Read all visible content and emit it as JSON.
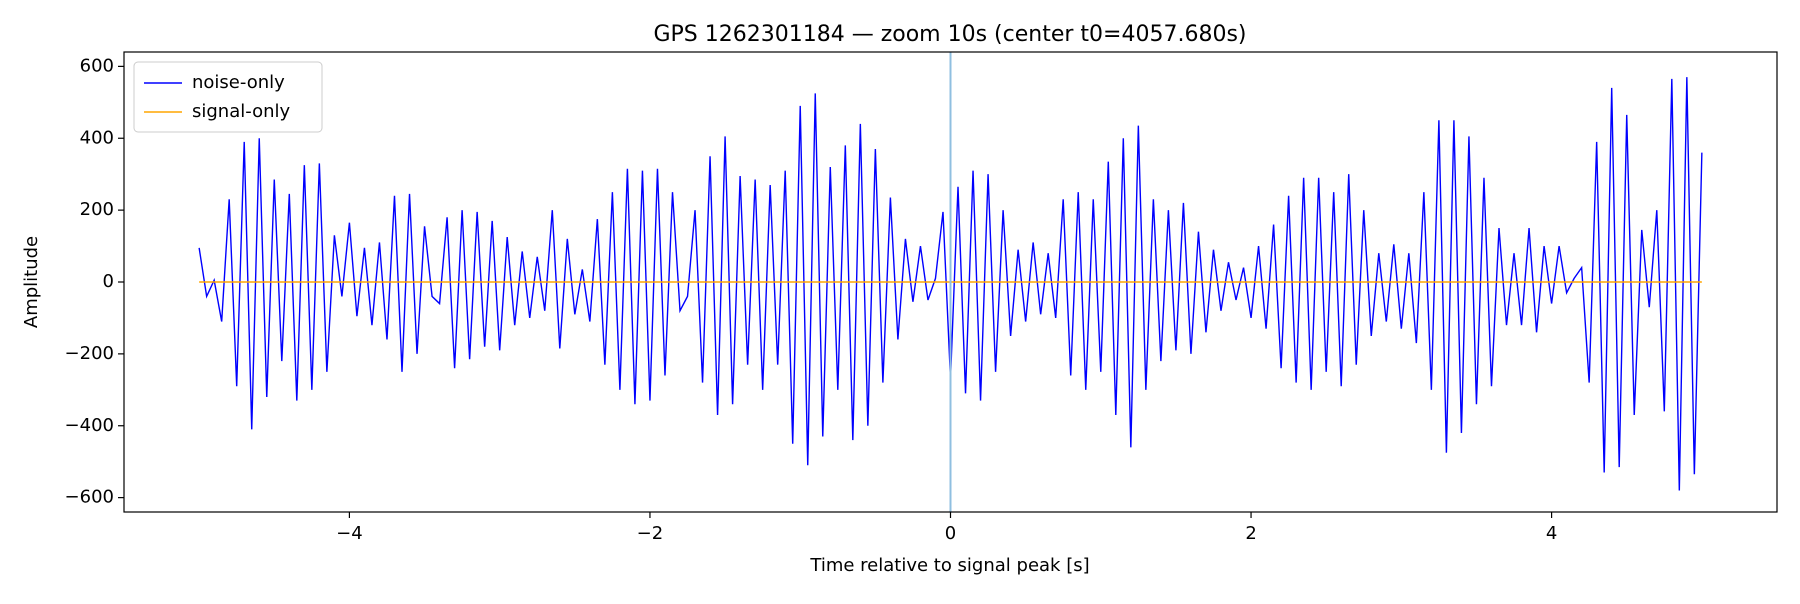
{
  "chart_data": {
    "type": "line",
    "title": "GPS 1262301184 — zoom 10s (center t0=4057.680s)",
    "xlabel": "Time relative to signal peak [s]",
    "ylabel": "Amplitude",
    "x": [
      -5,
      -4.95,
      -4.9,
      -4.85,
      -4.8,
      -4.75,
      -4.7,
      -4.65,
      -4.6,
      -4.55,
      -4.5,
      -4.45,
      -4.4,
      -4.35,
      -4.3,
      -4.25,
      -4.2,
      -4.15,
      -4.1,
      -4.05,
      -4,
      -3.95,
      -3.9,
      -3.85,
      -3.8,
      -3.75,
      -3.7,
      -3.65,
      -3.6,
      -3.55,
      -3.5,
      -3.45,
      -3.4,
      -3.35,
      -3.3,
      -3.25,
      -3.2,
      -3.15,
      -3.1,
      -3.05,
      -3,
      -2.95,
      -2.9,
      -2.85,
      -2.8,
      -2.75,
      -2.7,
      -2.65,
      -2.6,
      -2.55,
      -2.5,
      -2.45,
      -2.4,
      -2.35,
      -2.3,
      -2.25,
      -2.2,
      -2.15,
      -2.1,
      -2.05,
      -2,
      -1.95,
      -1.9,
      -1.85,
      -1.8,
      -1.75,
      -1.7,
      -1.65,
      -1.6,
      -1.55,
      -1.5,
      -1.45,
      -1.4,
      -1.35,
      -1.3,
      -1.25,
      -1.2,
      -1.15,
      -1.1,
      -1.05,
      -1,
      -0.95,
      -0.9,
      -0.85,
      -0.8,
      -0.75,
      -0.7,
      -0.65,
      -0.6,
      -0.55,
      -0.5,
      -0.45,
      -0.4,
      -0.35,
      -0.3,
      -0.25,
      -0.2,
      -0.15,
      -0.1,
      -0.05,
      0,
      0.05,
      0.1,
      0.15,
      0.2,
      0.25,
      0.3,
      0.35,
      0.4,
      0.45,
      0.5,
      0.55,
      0.6,
      0.65,
      0.7,
      0.75,
      0.8,
      0.85,
      0.9,
      0.95,
      1,
      1.05,
      1.1,
      1.15,
      1.2,
      1.25,
      1.3,
      1.35,
      1.4,
      1.45,
      1.5,
      1.55,
      1.6,
      1.65,
      1.7,
      1.75,
      1.8,
      1.85,
      1.9,
      1.95,
      2,
      2.05,
      2.1,
      2.15,
      2.2,
      2.25,
      2.3,
      2.35,
      2.4,
      2.45,
      2.5,
      2.55,
      2.6,
      2.65,
      2.7,
      2.75,
      2.8,
      2.85,
      2.9,
      2.95,
      3,
      3.05,
      3.1,
      3.15,
      3.2,
      3.25,
      3.3,
      3.35,
      3.4,
      3.45,
      3.5,
      3.55,
      3.6,
      3.65,
      3.7,
      3.75,
      3.8,
      3.85,
      3.9,
      3.95,
      4,
      4.05,
      4.1,
      4.15,
      4.2,
      4.25,
      4.3,
      4.35,
      4.4,
      4.45,
      4.5,
      4.55,
      4.6,
      4.65,
      4.7,
      4.75,
      4.8,
      4.85,
      4.9,
      4.95,
      5
    ],
    "series": [
      {
        "name": "noise-only",
        "color": "#0000ff",
        "values": [
          95,
          -40,
          5,
          -110,
          230,
          -290,
          390,
          -410,
          400,
          -320,
          285,
          -220,
          245,
          -330,
          325,
          -300,
          330,
          -250,
          130,
          -40,
          165,
          -95,
          95,
          -120,
          110,
          -160,
          240,
          -250,
          245,
          -200,
          155,
          -40,
          -60,
          180,
          -240,
          200,
          -215,
          195,
          -180,
          170,
          -190,
          125,
          -120,
          85,
          -100,
          70,
          -80,
          200,
          -185,
          120,
          -90,
          35,
          -110,
          175,
          -230,
          250,
          -300,
          315,
          -340,
          310,
          -330,
          315,
          -260,
          250,
          -80,
          -40,
          200,
          -280,
          350,
          -370,
          405,
          -340,
          295,
          -230,
          285,
          -300,
          270,
          -230,
          310,
          -450,
          490,
          -510,
          525,
          -430,
          320,
          -300,
          380,
          -440,
          440,
          -400,
          370,
          -280,
          235,
          -160,
          120,
          -55,
          100,
          -50,
          10,
          195,
          -270,
          265,
          -310,
          310,
          -330,
          300,
          -250,
          200,
          -150,
          90,
          -110,
          110,
          -90,
          80,
          -100,
          230,
          -260,
          250,
          -300,
          230,
          -250,
          335,
          -370,
          400,
          -460,
          435,
          -300,
          230,
          -220,
          200,
          -190,
          220,
          -200,
          140,
          -140,
          90,
          -80,
          55,
          -50,
          40,
          -100,
          100,
          -130,
          160,
          -240,
          240,
          -280,
          290,
          -300,
          290,
          -250,
          250,
          -290,
          300,
          -230,
          200,
          -150,
          80,
          -110,
          105,
          -130,
          80,
          -170,
          250,
          -300,
          450,
          -475,
          450,
          -420,
          405,
          -340,
          290,
          -290,
          150,
          -120,
          80,
          -120,
          150,
          -140,
          100,
          -60,
          100,
          -30,
          10,
          40,
          -280,
          390,
          -530,
          540,
          -515,
          465,
          -370,
          145,
          -70,
          200,
          -360,
          565,
          -580,
          570,
          -535,
          360
        ]
      },
      {
        "name": "signal-only",
        "color": "#ffa500",
        "values": [
          0,
          0,
          0,
          0,
          0,
          0,
          0,
          0,
          0,
          0,
          0,
          0,
          0,
          0,
          0,
          0,
          0,
          0,
          0,
          0,
          0,
          0,
          0,
          0,
          0,
          0,
          0,
          0,
          0,
          0,
          0,
          0,
          0,
          0,
          0,
          0,
          0,
          0,
          0,
          0,
          0,
          0,
          0,
          0,
          0,
          0,
          0,
          0,
          0,
          0,
          0,
          0,
          0,
          0,
          0,
          0,
          0,
          0,
          0,
          0,
          0,
          0,
          0,
          0,
          0,
          0,
          0,
          0,
          0,
          0,
          0,
          0,
          0,
          0,
          0,
          0,
          0,
          0,
          0,
          0,
          0,
          0,
          0,
          0,
          0,
          0,
          0,
          0,
          0,
          0,
          0,
          0,
          0,
          0,
          0,
          0,
          0,
          0,
          0,
          0,
          0,
          0,
          0,
          0,
          0,
          0,
          0,
          0,
          0,
          0,
          0,
          0,
          0,
          0,
          0,
          0,
          0,
          0,
          0,
          0,
          0,
          0,
          0,
          0,
          0,
          0,
          0,
          0,
          0,
          0,
          0,
          0,
          0,
          0,
          0,
          0,
          0,
          0,
          0,
          0,
          0,
          0,
          0,
          0,
          0,
          0,
          0,
          0,
          0,
          0,
          0,
          0,
          0,
          0,
          0,
          0,
          0,
          0,
          0,
          0,
          0,
          0,
          0,
          0,
          0,
          0,
          0,
          0,
          0,
          0,
          0,
          0,
          0,
          0,
          0,
          0,
          0,
          0,
          0,
          0,
          0,
          0,
          0,
          0,
          0,
          0,
          0,
          0,
          0,
          0,
          0,
          0,
          0,
          0,
          0,
          0,
          0,
          0,
          0,
          0,
          0
        ]
      }
    ],
    "vline": {
      "x": 0,
      "color": "#8fbfe0"
    },
    "xlim": [
      -5.5,
      5.5
    ],
    "xticks": [
      {
        "value": -4,
        "label": "−4"
      },
      {
        "value": -2,
        "label": "−2"
      },
      0,
      2,
      4
    ],
    "ylim": [
      -640,
      640
    ],
    "yticks": [
      {
        "value": -600,
        "label": "−600"
      },
      {
        "value": -400,
        "label": "−400"
      },
      {
        "value": -200,
        "label": "−200"
      },
      0,
      200,
      400,
      600
    ],
    "legend": "upper left"
  }
}
